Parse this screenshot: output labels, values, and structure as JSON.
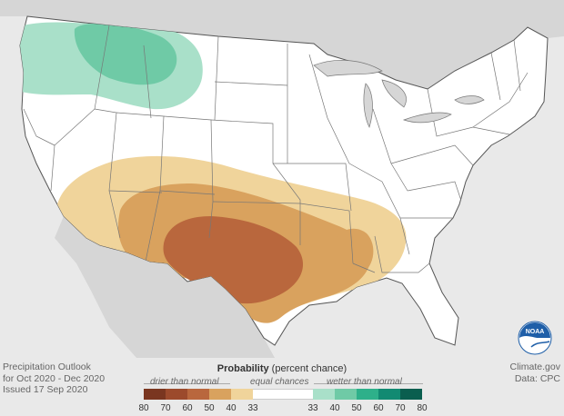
{
  "caption": {
    "line1": "Precipitation Outlook",
    "line2": "for Oct 2020 - Dec 2020",
    "line3": "Issued 17 Sep 2020"
  },
  "credit": {
    "line1": "Climate.gov",
    "line2": "Data: CPC"
  },
  "logo": {
    "text": "NOAA"
  },
  "legend": {
    "title_bold": "Probability",
    "title_rest": " (percent chance)",
    "drier_label": "drier than normal",
    "equal_label": "equal chances",
    "wetter_label": "wetter than normal",
    "colors": {
      "dry_70": "#7a3620",
      "dry_60": "#9c4a2c",
      "dry_50": "#b9673d",
      "dry_40": "#d9a25e",
      "dry_33": "#f0d49b",
      "equal": "#ffffff",
      "wet_33": "#a9e0c9",
      "wet_40": "#6fcaa6",
      "wet_50": "#2eb08a",
      "wet_60": "#128a72",
      "wet_70": "#0a5e4f"
    },
    "dry_ticks": [
      "80",
      "70",
      "60",
      "50",
      "40",
      "33"
    ],
    "wet_ticks": [
      "33",
      "40",
      "50",
      "60",
      "70",
      "80"
    ]
  }
}
